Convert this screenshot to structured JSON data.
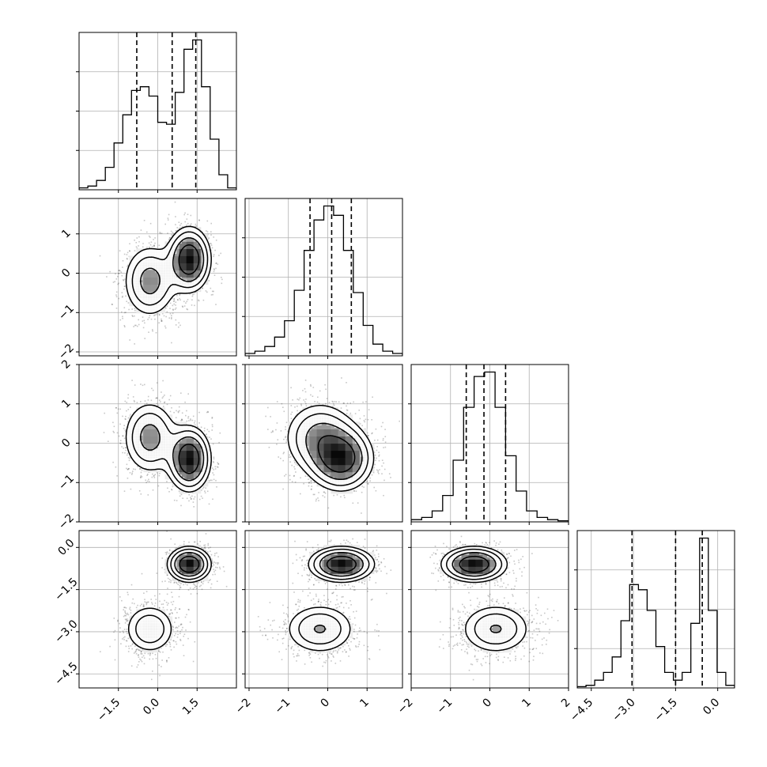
{
  "chart_data": {
    "type": "corner",
    "n_dims": 4,
    "grid": true,
    "dims": [
      {
        "range": [
          -3.0,
          3.0
        ],
        "ticks": [
          -1.5,
          0.0,
          1.5
        ],
        "tick_labels": [
          "−1.5",
          "0.0",
          "1.5"
        ],
        "quantiles": [
          -0.8,
          0.55,
          1.45
        ],
        "hist": [
          0.01,
          0.02,
          0.05,
          0.12,
          0.25,
          0.4,
          0.53,
          0.55,
          0.5,
          0.36,
          0.35,
          0.52,
          0.75,
          0.8,
          0.55,
          0.27,
          0.08,
          0.01
        ]
      },
      {
        "range": [
          -2.1,
          1.9
        ],
        "ticks": [
          -2,
          -1,
          0,
          1
        ],
        "tick_labels": [
          "−2",
          "−1",
          "0",
          "1"
        ],
        "quantiles": [
          -0.45,
          0.1,
          0.6
        ],
        "hist": [
          0.01,
          0.02,
          0.04,
          0.08,
          0.15,
          0.28,
          0.45,
          0.58,
          0.64,
          0.6,
          0.45,
          0.27,
          0.13,
          0.05,
          0.02,
          0.01
        ]
      },
      {
        "range": [
          -2.0,
          2.0
        ],
        "ticks": [
          -2,
          -1,
          0,
          1,
          2
        ],
        "tick_labels": [
          "−2",
          "−1",
          "0",
          "1",
          "2"
        ],
        "quantiles": [
          -0.6,
          -0.15,
          0.4
        ],
        "hist": [
          0.01,
          0.02,
          0.05,
          0.12,
          0.28,
          0.52,
          0.66,
          0.68,
          0.52,
          0.3,
          0.14,
          0.05,
          0.02,
          0.01,
          0.005
        ]
      },
      {
        "range": [
          -5.0,
          0.6
        ],
        "ticks": [
          -4.5,
          -3.0,
          -1.5,
          0.0
        ],
        "tick_labels": [
          "−4.5",
          "−3.0",
          "−1.5",
          "0.0"
        ],
        "quantiles": [
          -3.05,
          -1.5,
          -0.55
        ],
        "hist": [
          0.005,
          0.01,
          0.03,
          0.06,
          0.12,
          0.26,
          0.4,
          0.38,
          0.3,
          0.16,
          0.06,
          0.03,
          0.06,
          0.25,
          0.58,
          0.3,
          0.06,
          0.01
        ]
      }
    ],
    "modes": [
      {
        "weight": 0.55,
        "mean": [
          1.2,
          0.35,
          -0.4,
          -0.6
        ],
        "sd": [
          0.42,
          0.42,
          0.42,
          0.32
        ]
      },
      {
        "weight": 0.45,
        "mean": [
          -0.3,
          -0.2,
          0.15,
          -2.9
        ],
        "sd": [
          0.55,
          0.5,
          0.5,
          0.5
        ]
      }
    ],
    "contour_levels": [
      0.39,
      0.86,
      1.39,
      2.0
    ]
  }
}
